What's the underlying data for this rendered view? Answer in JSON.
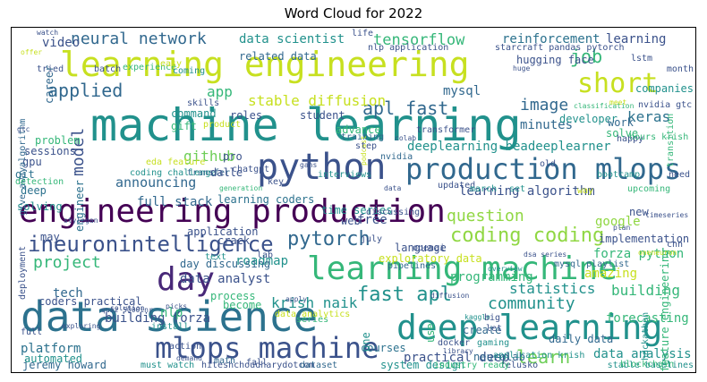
{
  "title": "Word Cloud for 2022",
  "palette": {
    "purple": "#440154",
    "indigo": "#3b528b",
    "blue": "#31688e",
    "teal": "#21918c",
    "green": "#35b779",
    "lime": "#90d743",
    "yellow": "#c7e020",
    "gold": "#dde318"
  },
  "words": [
    {
      "text": "machine learning",
      "color": "#21918c"
    },
    {
      "text": "learning engineering",
      "color": "#c7e020"
    },
    {
      "text": "engineering production",
      "color": "#440154"
    },
    {
      "text": "data science",
      "color": "#2c728e"
    },
    {
      "text": "python",
      "color": "#3b528b"
    },
    {
      "text": "production mlops",
      "color": "#31688e"
    },
    {
      "text": "learning machine",
      "color": "#35b779"
    },
    {
      "text": "deep learning",
      "color": "#21918c"
    },
    {
      "text": "mlops machine",
      "color": "#3b528b"
    },
    {
      "text": "day",
      "color": "#482878"
    },
    {
      "text": "neural network",
      "color": "#31688e"
    },
    {
      "text": "short",
      "color": "#c7e020"
    },
    {
      "text": "ineuronintelligence",
      "color": "#3b528b"
    },
    {
      "text": "pytorch",
      "color": "#31688e"
    },
    {
      "text": "coding coding",
      "color": "#90d743"
    },
    {
      "text": "applied",
      "color": "#31688e"
    },
    {
      "text": "fast apl",
      "color": "#21918c"
    },
    {
      "text": "apl fast",
      "color": "#31688e"
    },
    {
      "text": "tensorflow",
      "color": "#35b779"
    },
    {
      "text": "job",
      "color": "#35b779"
    },
    {
      "text": "project",
      "color": "#35b779"
    },
    {
      "text": "question",
      "color": "#90d743"
    },
    {
      "text": "community",
      "color": "#21918c"
    },
    {
      "text": "learn",
      "color": "#6ece58"
    },
    {
      "text": "statistics",
      "color": "#21918c"
    },
    {
      "text": "image",
      "color": "#31688e"
    },
    {
      "text": "keras",
      "color": "#2c728e"
    },
    {
      "text": "stable diffusion",
      "color": "#c7e020"
    },
    {
      "text": "data scientist",
      "color": "#21918c"
    },
    {
      "text": "reinforcement",
      "color": "#2c728e"
    },
    {
      "text": "learning",
      "color": "#3b528b"
    },
    {
      "text": "model",
      "color": "#3b528b"
    },
    {
      "text": "github",
      "color": "#6ece58"
    },
    {
      "text": "announcing",
      "color": "#31688e"
    },
    {
      "text": "minutes",
      "color": "#31688e"
    },
    {
      "text": "krish naik",
      "color": "#21918c"
    },
    {
      "text": "deeplearning beadeeplearner",
      "color": "#21918c"
    },
    {
      "text": "video",
      "color": "#3b528b"
    },
    {
      "text": "app",
      "color": "#35b779"
    },
    {
      "text": "mysql",
      "color": "#31688e"
    },
    {
      "text": "hugging face",
      "color": "#3b528b"
    },
    {
      "text": "learning algorithm",
      "color": "#3b528b"
    },
    {
      "text": "full stack",
      "color": "#31688e"
    },
    {
      "text": "learning coders",
      "color": "#2c728e"
    },
    {
      "text": "time series",
      "color": "#21918c"
    },
    {
      "text": "roadmap",
      "color": "#21918c"
    },
    {
      "text": "day discussing",
      "color": "#31688e"
    },
    {
      "text": "data analyst",
      "color": "#3b528b"
    },
    {
      "text": "process",
      "color": "#35b779"
    },
    {
      "text": "building",
      "color": "#35b779"
    },
    {
      "text": "building forza",
      "color": "#3b528b"
    },
    {
      "text": "coders practical",
      "color": "#3b528b"
    },
    {
      "text": "tech",
      "color": "#31688e"
    },
    {
      "text": "nlp",
      "color": "#35b779"
    },
    {
      "text": "platform",
      "color": "#2c728e"
    },
    {
      "text": "forza python",
      "color": "#35b779"
    },
    {
      "text": "amazing",
      "color": "#c7e020"
    },
    {
      "text": "programming",
      "color": "#35b779"
    },
    {
      "text": "exploratory data",
      "color": "#c7e020"
    },
    {
      "text": "data analysis",
      "color": "#21918c"
    },
    {
      "text": "forecasting",
      "color": "#35b779"
    },
    {
      "text": "practical deep",
      "color": "#3b528b"
    },
    {
      "text": "jeremy howard",
      "color": "#31688e"
    },
    {
      "text": "system design",
      "color": "#21918c"
    },
    {
      "text": "courses",
      "color": "#2c728e"
    },
    {
      "text": "neurolab",
      "color": "#31688e"
    },
    {
      "text": "automated",
      "color": "#21918c"
    },
    {
      "text": "implementation",
      "color": "#3b528b"
    },
    {
      "text": "google",
      "color": "#90d743"
    },
    {
      "text": "language",
      "color": "#3b528b"
    },
    {
      "text": "free",
      "color": "#3b528b"
    },
    {
      "text": "web",
      "color": "#3b528b"
    },
    {
      "text": "application",
      "color": "#3b528b"
    },
    {
      "text": "crack",
      "color": "#3b528b"
    },
    {
      "text": "related data",
      "color": "#31688e"
    },
    {
      "text": "roles",
      "color": "#3b528b"
    },
    {
      "text": "student",
      "color": "#3b528b"
    },
    {
      "text": "tried",
      "color": "#3b528b"
    },
    {
      "text": "career",
      "color": "#31688e"
    },
    {
      "text": "command",
      "color": "#21918c"
    },
    {
      "text": "gift",
      "color": "#35b779"
    },
    {
      "text": "nlp application",
      "color": "#3b528b"
    },
    {
      "text": "developer",
      "color": "#21918c"
    },
    {
      "text": "work",
      "color": "#31688e"
    },
    {
      "text": "solve",
      "color": "#35b779"
    },
    {
      "text": "companies",
      "color": "#21918c"
    },
    {
      "text": "training",
      "color": "#31688e"
    },
    {
      "text": "advance",
      "color": "#35b779"
    },
    {
      "text": "sessions",
      "color": "#3b528b"
    },
    {
      "text": "problem",
      "color": "#35b779"
    },
    {
      "text": "gpu",
      "color": "#3b528b"
    },
    {
      "text": "git",
      "color": "#2c728e"
    },
    {
      "text": "deep",
      "color": "#2c728e"
    },
    {
      "text": "solving",
      "color": "#21918c"
    },
    {
      "text": "engineer",
      "color": "#2c728e"
    },
    {
      "text": "coding challenge",
      "color": "#21918c"
    },
    {
      "text": "transfer",
      "color": "#31688e"
    },
    {
      "text": "dalle",
      "color": "#3b528b"
    },
    {
      "text": "chatgpt",
      "color": "#3b528b"
    },
    {
      "text": "pro",
      "color": "#3b528b"
    },
    {
      "text": "key",
      "color": "#3b528b"
    },
    {
      "text": "lab",
      "color": "#3b528b"
    },
    {
      "text": "text",
      "color": "#21918c"
    },
    {
      "text": "become",
      "color": "#35b779"
    },
    {
      "text": "may",
      "color": "#3b528b"
    },
    {
      "text": "july",
      "color": "#3b528b"
    },
    {
      "text": "openai",
      "color": "#3b528b"
    },
    {
      "text": "mysql playlist",
      "color": "#31688e"
    },
    {
      "text": "pipelines",
      "color": "#31688e"
    },
    {
      "text": "daily data",
      "color": "#31688e"
    },
    {
      "text": "create",
      "color": "#31688e"
    },
    {
      "text": "gaming",
      "color": "#21918c"
    },
    {
      "text": "docker",
      "color": "#3b528b"
    },
    {
      "text": "series",
      "color": "#35b779"
    },
    {
      "text": "one",
      "color": "#21918c"
    },
    {
      "text": "use",
      "color": "#35b779"
    },
    {
      "text": "data analytics",
      "color": "#c7e020"
    },
    {
      "text": "application krish",
      "color": "#21918c"
    },
    {
      "text": "new",
      "color": "#3b528b"
    },
    {
      "text": "experience",
      "color": "#35b779"
    },
    {
      "text": "life",
      "color": "#3b528b"
    },
    {
      "text": "skills",
      "color": "#3b528b"
    },
    {
      "text": "happy",
      "color": "#3b528b"
    },
    {
      "text": "transformer",
      "color": "#3b528b"
    },
    {
      "text": "interviews",
      "color": "#21918c"
    },
    {
      "text": "updated",
      "color": "#3b528b"
    },
    {
      "text": "march",
      "color": "#21918c"
    },
    {
      "text": "set",
      "color": "#21918c"
    },
    {
      "text": "nvidia",
      "color": "#31688e"
    },
    {
      "text": "bootcamp",
      "color": "#21918c"
    },
    {
      "text": "eda feature",
      "color": "#c7e020"
    },
    {
      "text": "feature engineering",
      "color": "#35b779"
    },
    {
      "text": "hackathon",
      "color": "#21918c"
    },
    {
      "text": "stable baselines",
      "color": "#21918c"
    },
    {
      "text": "telusko",
      "color": "#3b528b"
    },
    {
      "text": "hiteshchoudharydotcom",
      "color": "#3b528b"
    },
    {
      "text": "must watch",
      "color": "#21918c"
    },
    {
      "text": "math",
      "color": "#31688e"
    },
    {
      "text": "dataset",
      "color": "#31688e"
    },
    {
      "text": "industry ready",
      "color": "#35b779"
    },
    {
      "text": "give awayalgorithm",
      "color": "#31688e"
    },
    {
      "text": "detection",
      "color": "#35b779"
    },
    {
      "text": "deployment",
      "color": "#3b528b"
    },
    {
      "text": "transition",
      "color": "#35b779"
    },
    {
      "text": "month",
      "color": "#3b528b"
    },
    {
      "text": "batch",
      "color": "#3b528b"
    },
    {
      "text": "coming",
      "color": "#21918c"
    },
    {
      "text": "easy",
      "color": "#c7e020"
    },
    {
      "text": "lstm",
      "color": "#3b528b"
    },
    {
      "text": "starcraft pandas pytorch",
      "color": "#3b528b"
    },
    {
      "text": "watch",
      "color": "#3b528b"
    },
    {
      "text": "offer",
      "color": "#c7e020"
    },
    {
      "text": "classification",
      "color": "#35b779"
    },
    {
      "text": "nvidia gtc",
      "color": "#3b528b"
    },
    {
      "text": "hours krish",
      "color": "#35b779"
    },
    {
      "text": "demand",
      "color": "#3b528b"
    },
    {
      "text": "action",
      "color": "#3b528b"
    },
    {
      "text": "solution",
      "color": "#3b528b"
    },
    {
      "text": "install",
      "color": "#21918c"
    },
    {
      "text": "exploring",
      "color": "#3b528b"
    },
    {
      "text": "full",
      "color": "#3b528b"
    },
    {
      "text": "kaggle",
      "color": "#21918c"
    },
    {
      "text": "blockchain",
      "color": "#35b779"
    },
    {
      "text": "let",
      "color": "#3b528b"
    },
    {
      "text": "need",
      "color": "#3b528b"
    },
    {
      "text": "cnn",
      "color": "#3b528b"
    },
    {
      "text": "discussing",
      "color": "#3b528b"
    },
    {
      "text": "way",
      "color": "#c7e020"
    },
    {
      "text": "upcoming",
      "color": "#35b779"
    },
    {
      "text": "fall",
      "color": "#3b528b"
    },
    {
      "text": "podcast",
      "color": "#c7e020"
    },
    {
      "text": "colab",
      "color": "#3b528b"
    },
    {
      "text": "step",
      "color": "#3b528b"
    },
    {
      "text": "old",
      "color": "#3b528b"
    },
    {
      "text": "product",
      "color": "#c7e020"
    },
    {
      "text": "generation",
      "color": "#35b779"
    },
    {
      "text": "stylegan",
      "color": "#3b528b"
    },
    {
      "text": "quiz 5000inr",
      "color": "#3b528b"
    },
    {
      "text": "gans",
      "color": "#3b528b"
    },
    {
      "text": "data",
      "color": "#3b528b"
    },
    {
      "text": "dsa series",
      "color": "#3b528b"
    },
    {
      "text": "overview",
      "color": "#21918c"
    },
    {
      "text": "plan",
      "color": "#3b528b"
    },
    {
      "text": "timeseries",
      "color": "#3b528b"
    },
    {
      "text": "oneneuron",
      "color": "#c7e020"
    },
    {
      "text": "huge",
      "color": "#3b528b"
    },
    {
      "text": "meet",
      "color": "#c7e020"
    },
    {
      "text": "gtc",
      "color": "#3b528b"
    },
    {
      "text": "big",
      "color": "#3b528b"
    },
    {
      "text": "library",
      "color": "#3b528b"
    },
    {
      "text": "picks",
      "color": "#3b528b"
    },
    {
      "text": "apply",
      "color": "#3b528b"
    },
    {
      "text": "diffusion",
      "color": "#3b528b"
    }
  ]
}
